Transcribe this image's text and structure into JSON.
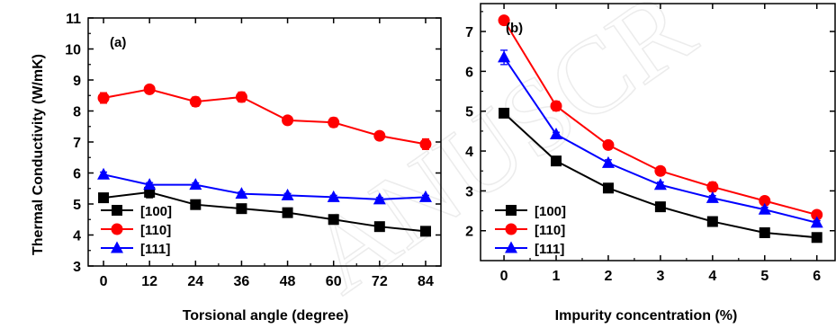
{
  "chart_data": [
    {
      "type": "line",
      "panel_label": "(a)",
      "xlabel": "Torsional angle (degree)",
      "ylabel": "Thermal Conductivity (W/mK)",
      "x": [
        0,
        12,
        24,
        36,
        48,
        60,
        72,
        84
      ],
      "xticks": [
        "0",
        "12",
        "24",
        "36",
        "48",
        "60",
        "72",
        "84"
      ],
      "xlim": [
        -4,
        88
      ],
      "ylim": [
        3,
        11
      ],
      "yticks": [
        "3",
        "4",
        "5",
        "6",
        "7",
        "8",
        "9",
        "10",
        "11"
      ],
      "legend_position": "bottom-left",
      "series": [
        {
          "name": "[100]",
          "color": "#000000",
          "marker": "square",
          "values": [
            5.2,
            5.38,
            4.98,
            4.85,
            4.72,
            4.5,
            4.27,
            4.12
          ],
          "errors": [
            0.1,
            0.18,
            0.08,
            0.06,
            0.08,
            0.06,
            0.08,
            0.1
          ]
        },
        {
          "name": "[110]",
          "color": "#ff0000",
          "marker": "circle",
          "values": [
            8.42,
            8.7,
            8.3,
            8.45,
            7.7,
            7.63,
            7.2,
            6.93
          ],
          "errors": [
            0.17,
            0.08,
            0.15,
            0.16,
            0.08,
            0.15,
            0.08,
            0.17
          ]
        },
        {
          "name": "[111]",
          "color": "#0000ff",
          "marker": "triangle",
          "values": [
            5.95,
            5.62,
            5.62,
            5.33,
            5.28,
            5.22,
            5.15,
            5.22
          ],
          "errors": [
            0.08,
            0.07,
            0.06,
            0.06,
            0.06,
            0.06,
            0.06,
            0.06
          ]
        }
      ]
    },
    {
      "type": "line",
      "panel_label": "(b)",
      "xlabel": "Impurity concentration (%)",
      "ylabel": "",
      "x": [
        0,
        1,
        2,
        3,
        4,
        5,
        6
      ],
      "xticks": [
        "0",
        "1",
        "2",
        "3",
        "4",
        "5",
        "6"
      ],
      "xlim": [
        -0.45,
        6.35
      ],
      "ylim": [
        1.25,
        7.7
      ],
      "yticks": [
        "2",
        "3",
        "4",
        "5",
        "6",
        "7"
      ],
      "legend_position": "bottom-left",
      "series": [
        {
          "name": "[100]",
          "color": "#000000",
          "marker": "square",
          "values": [
            4.95,
            3.75,
            3.07,
            2.6,
            2.23,
            1.95,
            1.83
          ],
          "errors": [
            0.05,
            0.05,
            0.05,
            0.04,
            0.06,
            0.04,
            0.04
          ]
        },
        {
          "name": "[110]",
          "color": "#ff0000",
          "marker": "circle",
          "values": [
            7.28,
            5.13,
            4.15,
            3.5,
            3.1,
            2.75,
            2.4
          ],
          "errors": [
            0.05,
            0.12,
            0.05,
            0.05,
            0.12,
            0.1,
            0.05
          ]
        },
        {
          "name": "[111]",
          "color": "#0000ff",
          "marker": "triangle",
          "values": [
            6.35,
            4.42,
            3.7,
            3.15,
            2.82,
            2.53,
            2.2
          ],
          "errors": [
            0.18,
            0.05,
            0.08,
            0.07,
            0.06,
            0.06,
            0.05
          ]
        }
      ]
    }
  ]
}
